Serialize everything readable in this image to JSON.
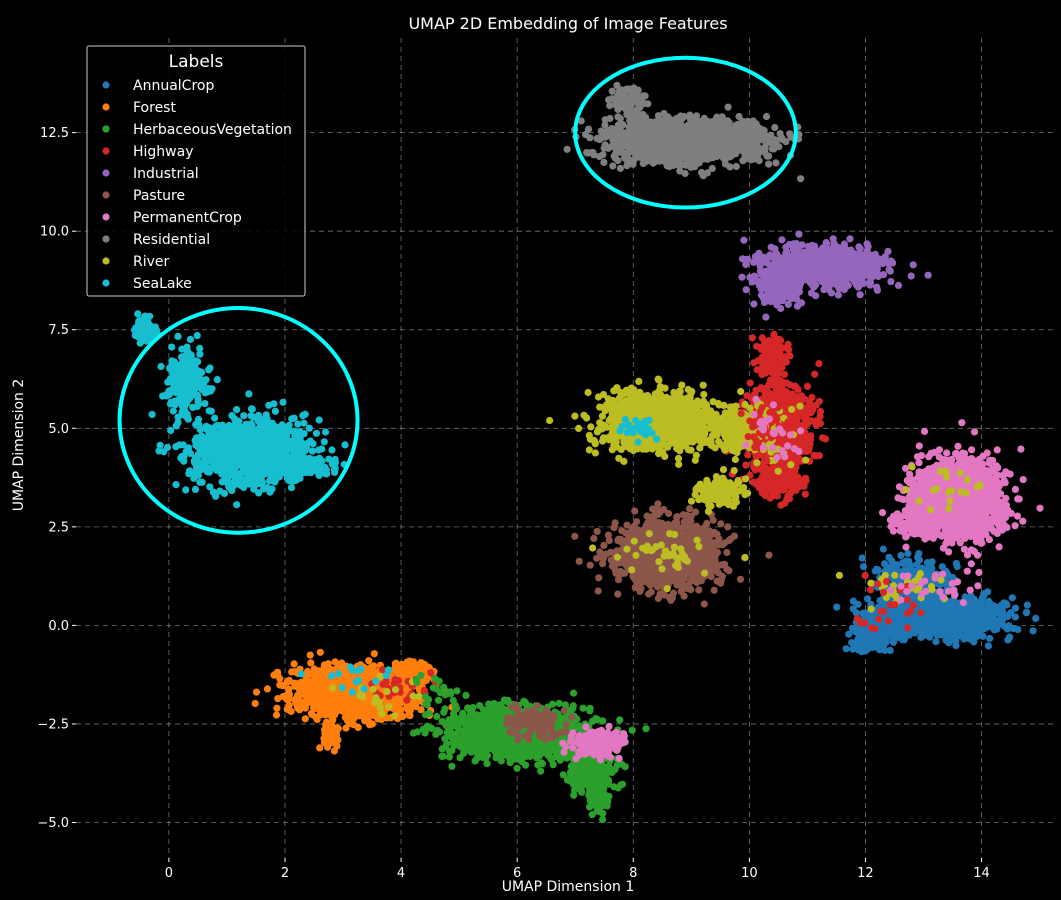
{
  "chart_data": {
    "type": "scatter",
    "title": "UMAP 2D Embedding of Image Features",
    "xlabel": "UMAP Dimension 1",
    "ylabel": "UMAP Dimension 2",
    "xlim": [
      -1.6,
      15.3
    ],
    "ylim": [
      -5.9,
      14.9
    ],
    "x_ticks": [
      0,
      2,
      4,
      6,
      8,
      10,
      12,
      14
    ],
    "x_tick_labels": [
      "0",
      "2",
      "4",
      "6",
      "8",
      "10",
      "12",
      "14"
    ],
    "y_ticks": [
      -5.0,
      -2.5,
      0.0,
      2.5,
      5.0,
      7.5,
      10.0,
      12.5
    ],
    "y_tick_labels": [
      "−5.0",
      "−2.5",
      "0.0",
      "2.5",
      "5.0",
      "7.5",
      "10.0",
      "12.5"
    ],
    "grid": true,
    "legend": {
      "title": "Labels",
      "placement": "top-left"
    },
    "series": [
      {
        "name": "AnnualCrop",
        "color": "#1f77b4",
        "clusters": [
          {
            "cx": 13.2,
            "cy": 0.2,
            "rx": 1.2,
            "ry": 0.55,
            "n": 1300
          },
          {
            "cx": 12.1,
            "cy": -0.3,
            "rx": 0.35,
            "ry": 0.5,
            "n": 200
          },
          {
            "cx": 12.8,
            "cy": 1.2,
            "rx": 0.7,
            "ry": 0.5,
            "n": 250
          }
        ]
      },
      {
        "name": "Forest",
        "color": "#ff7f0e",
        "clusters": [
          {
            "cx": 3.2,
            "cy": -1.7,
            "rx": 1.1,
            "ry": 0.65,
            "n": 1400
          },
          {
            "cx": 2.8,
            "cy": -2.8,
            "rx": 0.15,
            "ry": 0.4,
            "n": 80
          },
          {
            "cx": 4.2,
            "cy": -1.2,
            "rx": 0.35,
            "ry": 0.35,
            "n": 150
          }
        ]
      },
      {
        "name": "HerbaceousVegetation",
        "color": "#2ca02c",
        "clusters": [
          {
            "cx": 6.0,
            "cy": -2.7,
            "rx": 1.3,
            "ry": 0.7,
            "n": 1400
          },
          {
            "cx": 7.3,
            "cy": -3.7,
            "rx": 0.4,
            "ry": 0.6,
            "n": 250
          },
          {
            "cx": 7.4,
            "cy": -4.4,
            "rx": 0.15,
            "ry": 0.35,
            "n": 60
          }
        ]
      },
      {
        "name": "Highway",
        "color": "#d62728",
        "clusters": [
          {
            "cx": 10.5,
            "cy": 5.0,
            "rx": 0.6,
            "ry": 1.1,
            "n": 900
          },
          {
            "cx": 10.4,
            "cy": 6.8,
            "rx": 0.25,
            "ry": 0.6,
            "n": 150
          },
          {
            "cx": 10.5,
            "cy": 3.7,
            "rx": 0.4,
            "ry": 0.5,
            "n": 200
          }
        ]
      },
      {
        "name": "Industrial",
        "color": "#9467bd",
        "clusters": [
          {
            "cx": 11.3,
            "cy": 9.1,
            "rx": 1.1,
            "ry": 0.55,
            "n": 1000
          },
          {
            "cx": 10.5,
            "cy": 8.6,
            "rx": 0.4,
            "ry": 0.5,
            "n": 150
          }
        ]
      },
      {
        "name": "Pasture",
        "color": "#8c564b",
        "clusters": [
          {
            "cx": 8.6,
            "cy": 1.8,
            "rx": 0.95,
            "ry": 0.95,
            "n": 1100
          },
          {
            "cx": 6.3,
            "cy": -2.5,
            "rx": 0.6,
            "ry": 0.4,
            "n": 120
          }
        ]
      },
      {
        "name": "PermanentCrop",
        "color": "#e377c2",
        "clusters": [
          {
            "cx": 13.6,
            "cy": 3.2,
            "rx": 0.9,
            "ry": 1.1,
            "n": 1300
          },
          {
            "cx": 12.9,
            "cy": 2.6,
            "rx": 0.5,
            "ry": 0.35,
            "n": 150
          },
          {
            "cx": 7.4,
            "cy": -3.0,
            "rx": 0.45,
            "ry": 0.35,
            "n": 200
          }
        ]
      },
      {
        "name": "Residential",
        "color": "#7f7f7f",
        "clusters": [
          {
            "cx": 8.9,
            "cy": 12.3,
            "rx": 1.5,
            "ry": 0.6,
            "n": 1300
          },
          {
            "cx": 7.9,
            "cy": 13.3,
            "rx": 0.3,
            "ry": 0.35,
            "n": 100
          }
        ]
      },
      {
        "name": "River",
        "color": "#bcbd22",
        "clusters": [
          {
            "cx": 8.4,
            "cy": 5.2,
            "rx": 1.0,
            "ry": 0.8,
            "n": 1200
          },
          {
            "cx": 9.5,
            "cy": 3.4,
            "rx": 0.4,
            "ry": 0.4,
            "n": 200
          },
          {
            "cx": 9.8,
            "cy": 5.0,
            "rx": 0.5,
            "ry": 0.7,
            "n": 200
          }
        ]
      },
      {
        "name": "SeaLake",
        "color": "#17becf",
        "clusters": [
          {
            "cx": 1.4,
            "cy": 4.4,
            "rx": 1.1,
            "ry": 0.85,
            "n": 1300
          },
          {
            "cx": 0.3,
            "cy": 6.2,
            "rx": 0.35,
            "ry": 0.9,
            "n": 250
          },
          {
            "cx": -0.4,
            "cy": 7.5,
            "rx": 0.2,
            "ry": 0.35,
            "n": 80
          },
          {
            "cx": 2.4,
            "cy": 4.0,
            "rx": 0.5,
            "ry": 0.25,
            "n": 120
          }
        ]
      }
    ],
    "annotations": [
      {
        "type": "ellipse",
        "color": "#00ffff",
        "cx": 8.9,
        "cy": 12.5,
        "rx": 1.9,
        "ry": 1.9
      },
      {
        "type": "ellipse",
        "color": "#00ffff",
        "cx": 1.2,
        "cy": 5.2,
        "rx": 2.05,
        "ry": 2.85
      }
    ]
  }
}
